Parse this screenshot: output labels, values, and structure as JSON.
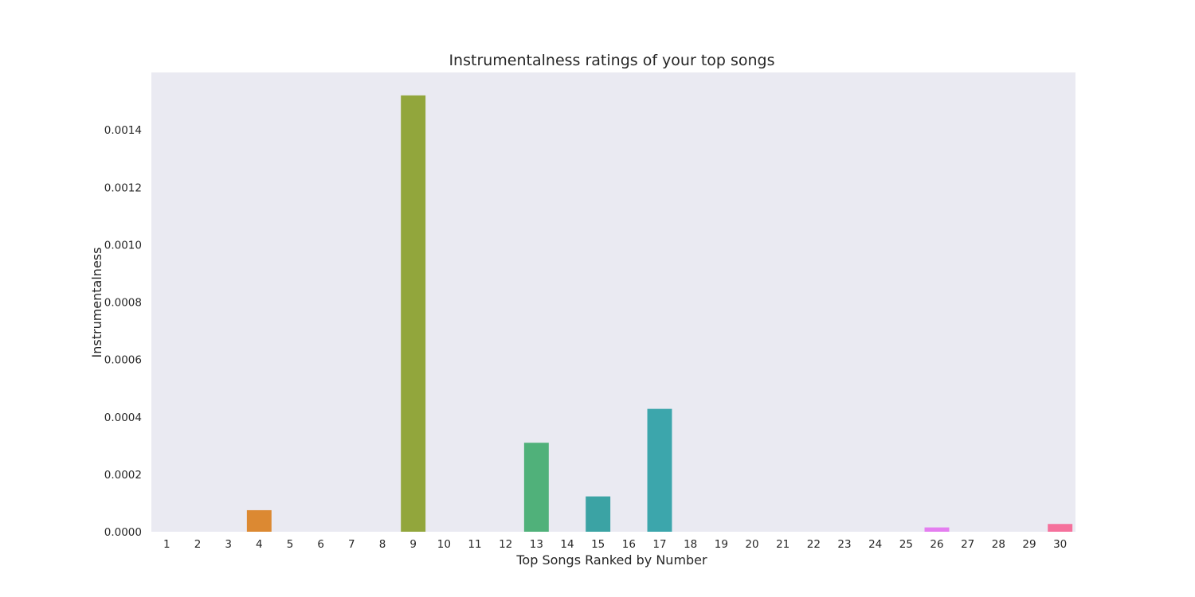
{
  "chart_data": {
    "type": "bar",
    "title": "Instrumentalness ratings of your top songs",
    "xlabel": "Top Songs Ranked by Number",
    "ylabel": "Instrumentalness",
    "categories": [
      "1",
      "2",
      "3",
      "4",
      "5",
      "6",
      "7",
      "8",
      "9",
      "10",
      "11",
      "12",
      "13",
      "14",
      "15",
      "16",
      "17",
      "18",
      "19",
      "20",
      "21",
      "22",
      "23",
      "24",
      "25",
      "26",
      "27",
      "28",
      "29",
      "30"
    ],
    "values": [
      0,
      0,
      0,
      7.5e-05,
      0,
      0,
      0,
      0,
      0.00152,
      0,
      0,
      0,
      0.00031,
      0,
      0.000123,
      0,
      0.000428,
      0,
      0,
      0,
      0,
      0,
      0,
      0,
      0,
      1.5e-05,
      0,
      0,
      0,
      2.7e-05
    ],
    "ylim": [
      0,
      0.0016
    ],
    "yticks": [
      "0.0000",
      "0.0002",
      "0.0004",
      "0.0006",
      "0.0008",
      "0.0010",
      "0.0012",
      "0.0014"
    ],
    "grid": false,
    "legend": "none",
    "background_color": "#eaeaf2",
    "bar_colors": [
      "#f77189",
      "#f7754f",
      "#e8812f",
      "#dc8932",
      "#d1903a",
      "#c29a3a",
      "#b1a03a",
      "#a3a63a",
      "#92a63c",
      "#66b032",
      "#3aae5c",
      "#36b077",
      "#50b17a",
      "#38b196",
      "#3ba3a4",
      "#3ba4a8",
      "#3ca6ac",
      "#3daab2",
      "#3aa7c4",
      "#41a4d3",
      "#5e9ee3",
      "#8c97f4",
      "#a38cf4",
      "#bb81f4",
      "#d673f4",
      "#e47ef0",
      "#f564d4",
      "#f562be",
      "#f66aad",
      "#f5719c"
    ]
  }
}
